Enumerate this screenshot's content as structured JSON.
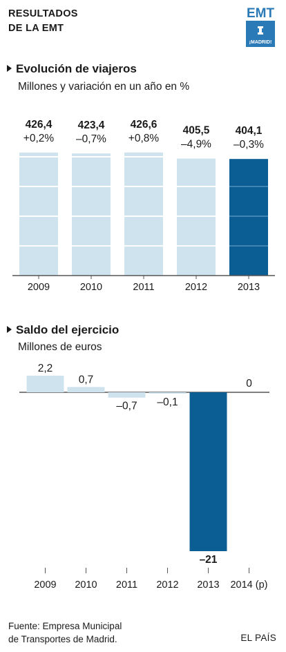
{
  "header": {
    "title_line1": "RESULTADOS",
    "title_line2": "DE LA EMT",
    "logo_text": "EMT",
    "logo_sub": "¡MADRID!"
  },
  "colors": {
    "light_bar": "#cfe3ee",
    "dark_bar": "#0a5e94",
    "baseline": "#555555",
    "gridline": "#ffffff"
  },
  "chart_data": [
    {
      "type": "bar",
      "title": "Evolución de viajeros",
      "subtitle": "Millones y variación en un año en %",
      "categories": [
        "2009",
        "2010",
        "2011",
        "2012",
        "2013"
      ],
      "values": [
        426.4,
        423.4,
        426.6,
        405.5,
        404.1
      ],
      "value_labels": [
        "426,4",
        "423,4",
        "426,6",
        "405,5",
        "404,1"
      ],
      "change_labels": [
        "+0,2%",
        "–0,7%",
        "+0,8%",
        "–4,9%",
        "–0,3%"
      ],
      "highlight": "2013",
      "ylim": [
        0,
        450
      ],
      "grid": true
    },
    {
      "type": "bar",
      "title": "Saldo del ejercicio",
      "subtitle": "Millones de euros",
      "categories": [
        "2009",
        "2010",
        "2011",
        "2012",
        "2013",
        "2014 (p)"
      ],
      "values": [
        2.2,
        0.7,
        -0.7,
        -0.1,
        -21,
        0
      ],
      "value_labels": [
        "2,2",
        "0,7",
        "–0,7",
        "–0,1",
        "–21",
        "0"
      ],
      "highlight": "2013",
      "ylim": [
        -21,
        2.2
      ],
      "grid": false
    }
  ],
  "footer": {
    "source_line1": "Fuente: Empresa Municipal",
    "source_line2": "de Transportes de Madrid.",
    "brand": "EL PAÍS"
  }
}
